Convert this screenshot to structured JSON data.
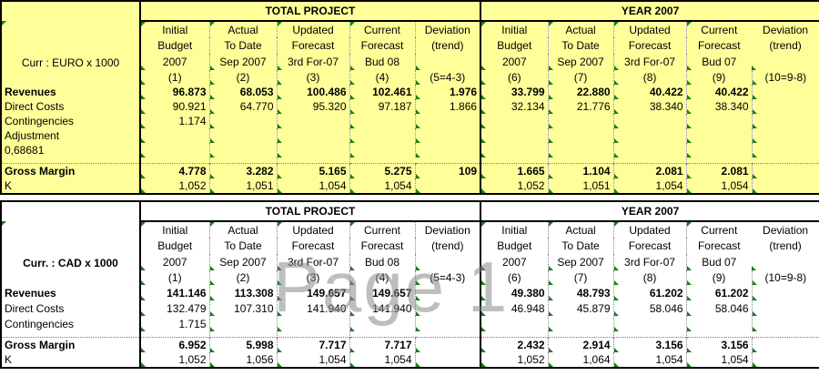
{
  "top": {
    "currency_label": "Curr : EURO x 1000",
    "group_titles": [
      "TOTAL PROJECT",
      "YEAR 2007"
    ],
    "col_headers": [
      [
        "Initial",
        "Budget",
        "2007"
      ],
      [
        "Actual",
        "To Date",
        "Sep 2007"
      ],
      [
        "Updated",
        "Forecast",
        "3rd For-07"
      ],
      [
        "Current",
        "Forecast",
        "Bud 08"
      ],
      [
        "Deviation",
        "(trend)",
        ""
      ],
      [
        "Initial",
        "Budget",
        "2007"
      ],
      [
        "Actual",
        "To Date",
        "Sep 2007"
      ],
      [
        "Updated",
        "Forecast",
        "3rd For-07"
      ],
      [
        "Current",
        "Forecast",
        "Bud 07"
      ],
      [
        "Deviation",
        "(trend)",
        ""
      ]
    ],
    "col_numbers": [
      "(1)",
      "(2)",
      "(3)",
      "(4)",
      "(5=4-3)",
      "(6)",
      "(7)",
      "(8)",
      "(9)",
      "(10=9-8)"
    ],
    "rows": [
      {
        "label": "Revenues",
        "bold": true,
        "values": [
          "96.873",
          "68.053",
          "100.486",
          "102.461",
          "1.976",
          "33.799",
          "22.880",
          "40.422",
          "40.422",
          ""
        ]
      },
      {
        "label": "Direct Costs",
        "bold": false,
        "values": [
          "90.921",
          "64.770",
          "95.320",
          "97.187",
          "1.866",
          "32.134",
          "21.776",
          "38.340",
          "38.340",
          ""
        ]
      },
      {
        "label": "Contingencies",
        "bold": false,
        "values": [
          "1.174",
          "",
          "",
          "",
          "",
          "",
          "",
          "",
          "",
          ""
        ]
      },
      {
        "label": "Adjustment",
        "bold": false,
        "values": [
          "",
          "",
          "",
          "",
          "",
          "",
          "",
          "",
          "",
          ""
        ]
      },
      {
        "label": "0,68681",
        "bold": false,
        "values": [
          "",
          "",
          "",
          "",
          "",
          "",
          "",
          "",
          "",
          ""
        ]
      }
    ],
    "gross_margin": {
      "label": "Gross Margin",
      "values": [
        "4.778",
        "3.282",
        "5.165",
        "5.275",
        "109",
        "1.665",
        "1.104",
        "2.081",
        "2.081",
        ""
      ]
    },
    "k_row": {
      "label": "K",
      "values": [
        "1,052",
        "1,051",
        "1,054",
        "1,054",
        "",
        "1,052",
        "1,051",
        "1,054",
        "1,054",
        ""
      ]
    }
  },
  "bottom": {
    "currency_label": "Curr. : CAD x 1000",
    "group_titles": [
      "TOTAL PROJECT",
      "YEAR 2007"
    ],
    "col_headers": [
      [
        "Initial",
        "Budget",
        "2007"
      ],
      [
        "Actual",
        "To Date",
        "Sep 2007"
      ],
      [
        "Updated",
        "Forecast",
        "3rd For-07"
      ],
      [
        "Current",
        "Forecast",
        "Bud 08"
      ],
      [
        "Deviation",
        "(trend)",
        ""
      ],
      [
        "Initial",
        "Budget",
        "2007"
      ],
      [
        "Actual",
        "To Date",
        "Sep 2007"
      ],
      [
        "Updated",
        "Forecast",
        "3rd For-07"
      ],
      [
        "Current",
        "Forecast",
        "Bud 07"
      ],
      [
        "Deviation",
        "(trend)",
        ""
      ]
    ],
    "col_numbers": [
      "(1)",
      "(2)",
      "(3)",
      "(4)",
      "(5=4-3)",
      "(6)",
      "(7)",
      "(8)",
      "(9)",
      "(10=9-8)"
    ],
    "rows": [
      {
        "label": "Revenues",
        "bold": true,
        "values": [
          "141.146",
          "113.308",
          "149.657",
          "149.657",
          "",
          "49.380",
          "48.793",
          "61.202",
          "61.202",
          ""
        ]
      },
      {
        "label": "Direct Costs",
        "bold": false,
        "values": [
          "132.479",
          "107.310",
          "141.940",
          "141.940",
          "",
          "46.948",
          "45.879",
          "58.046",
          "58.046",
          ""
        ]
      },
      {
        "label": "Contingencies",
        "bold": false,
        "values": [
          "1.715",
          "",
          "",
          "",
          "",
          "",
          "",
          "",
          "",
          ""
        ]
      }
    ],
    "gross_margin": {
      "label": "Gross Margin",
      "values": [
        "6.952",
        "5.998",
        "7.717",
        "7.717",
        "",
        "2.432",
        "2.914",
        "3.156",
        "3.156",
        ""
      ]
    },
    "k_row": {
      "label": "K",
      "values": [
        "1,052",
        "1,056",
        "1,054",
        "1,054",
        "",
        "1,052",
        "1,064",
        "1,054",
        "1,054",
        ""
      ]
    }
  },
  "watermark": "Page 1",
  "colors": {
    "header_fill": "#ffff99",
    "indicator": "#1a7a1a",
    "watermark": "#8a8a8a"
  }
}
